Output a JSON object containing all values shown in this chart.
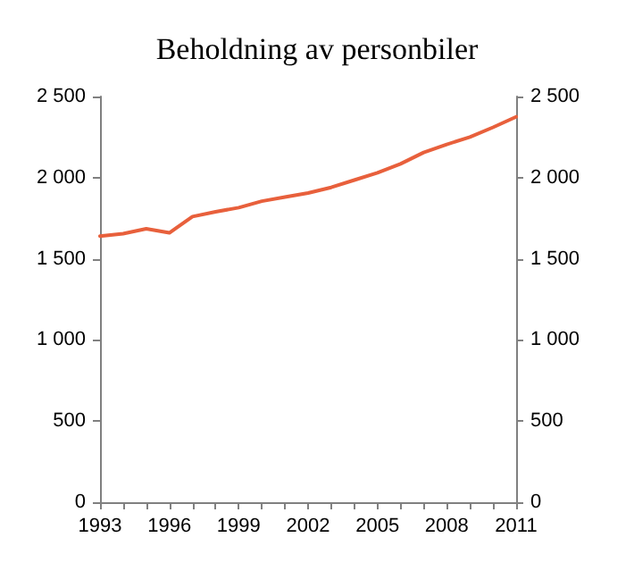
{
  "chart_data": {
    "type": "line",
    "title": "Beholdning av personbiler",
    "categories": [
      "1993",
      null,
      null,
      "1996",
      null,
      null,
      "1999",
      null,
      null,
      "2002",
      null,
      null,
      "2005",
      null,
      null,
      "2008",
      null,
      null,
      "2011"
    ],
    "series": [
      {
        "color": "#e8603c",
        "values": [
          1640,
          1655,
          1685,
          1660,
          1760,
          1790,
          1815,
          1855,
          1880,
          1905,
          1940,
          1985,
          2030,
          2085,
          2155,
          2205,
          2250,
          2310,
          2375
        ]
      }
    ],
    "ylim": [
      0,
      2500
    ],
    "yticks": [
      0,
      500,
      {
        "value": 1000,
        "label": "1 000"
      },
      {
        "value": 1500,
        "label": "1 500"
      },
      {
        "value": 2000,
        "label": "2 000"
      },
      {
        "value": 2500,
        "label": "2 500"
      }
    ],
    "y2lim": [
      0,
      2500
    ],
    "y2ticks": [
      0,
      500,
      {
        "value": 1000,
        "label": "1 000"
      },
      {
        "value": 1500,
        "label": "1 500"
      },
      {
        "value": 2000,
        "label": "2 000"
      },
      {
        "value": 2500,
        "label": "2 500"
      }
    ],
    "grid": false,
    "marker": "none",
    "line_style": "solid"
  }
}
